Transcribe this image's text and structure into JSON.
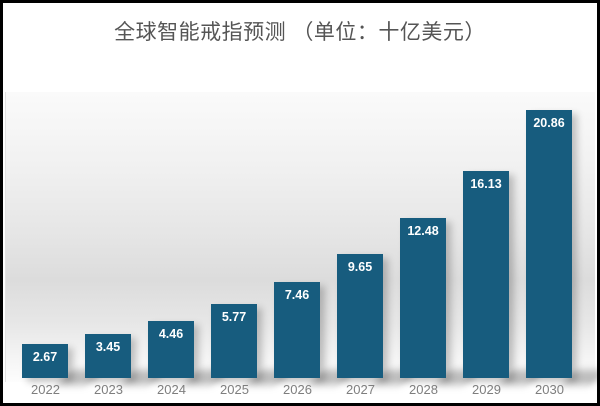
{
  "chart_data": {
    "type": "bar",
    "title": "全球智能戒指预测 （单位：十亿美元）",
    "categories": [
      "2022",
      "2023",
      "2024",
      "2025",
      "2026",
      "2027",
      "2028",
      "2029",
      "2030"
    ],
    "values": [
      2.67,
      3.45,
      4.46,
      5.77,
      7.46,
      9.65,
      12.48,
      16.13,
      20.86
    ],
    "value_labels": [
      "2.67",
      "3.45",
      "4.46",
      "5.77",
      "7.46",
      "9.65",
      "12.48",
      "16.13",
      "20.86"
    ],
    "xlabel": "",
    "ylabel": "",
    "ylim": [
      0,
      22
    ],
    "grid": false,
    "legend": "none",
    "value_labels_position": "inside-top",
    "colors": {
      "bar_fill": "#175C7E",
      "value_label": "#FFFFFF",
      "axis_label": "#7E7E7E",
      "title": "#555555",
      "frame_border": "#000000",
      "plot_band": "#DCDCDC"
    }
  }
}
